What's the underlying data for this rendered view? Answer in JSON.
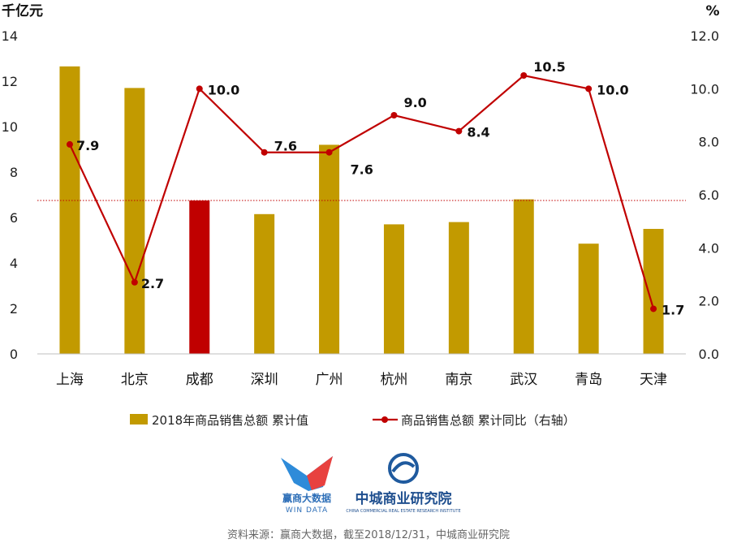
{
  "chart_data": {
    "type": "bar+line",
    "left_axis_unit": "千亿元",
    "right_axis_unit": "%",
    "categories": [
      "上海",
      "北京",
      "成都",
      "深圳",
      "广州",
      "杭州",
      "南京",
      "武汉",
      "青岛",
      "天津"
    ],
    "series": [
      {
        "name": "2018年商品销售总额 累计值",
        "type": "bar",
        "axis": "left",
        "color": "#C29A00",
        "highlight_color": "#C00000",
        "highlight_index": 2,
        "values": [
          12.65,
          11.7,
          6.75,
          6.15,
          9.2,
          5.7,
          5.8,
          6.8,
          4.85,
          5.5
        ]
      },
      {
        "name": "商品销售总额 累计同比（右轴）",
        "type": "line",
        "axis": "right",
        "color": "#C00000",
        "values": [
          7.9,
          2.7,
          10.0,
          7.6,
          7.6,
          9.0,
          8.4,
          10.5,
          10.0,
          1.7
        ],
        "labels": [
          "7.9",
          "2.7",
          "10.0",
          "7.6",
          "7.6",
          "9.0",
          "8.4",
          "10.5",
          "10.0",
          "1.7"
        ]
      }
    ],
    "left_ylim": [
      0,
      14
    ],
    "left_ticks": [
      "0",
      "2",
      "4",
      "6",
      "8",
      "10",
      "12",
      "14"
    ],
    "right_ylim": [
      0,
      12
    ],
    "right_ticks": [
      "0.0",
      "2.0",
      "4.0",
      "6.0",
      "8.0",
      "10.0",
      "12.0"
    ],
    "reference_line": {
      "axis": "left",
      "value": 6.75,
      "style": "dotted",
      "color": "#C00000"
    },
    "grid": false,
    "legend_position": "bottom"
  },
  "logos": {
    "windata_cn": "赢商大数据",
    "windata_en": "WIN DATA",
    "zhongcheng_cn": "中城商业研究院",
    "zhongcheng_en": "CHINA COMMERCIAL REAL ESTATE RESEARCH INSTITUTE"
  },
  "footer": {
    "source": "资料来源：赢商大数据，截至2018/12/31，中城商业研究院"
  }
}
